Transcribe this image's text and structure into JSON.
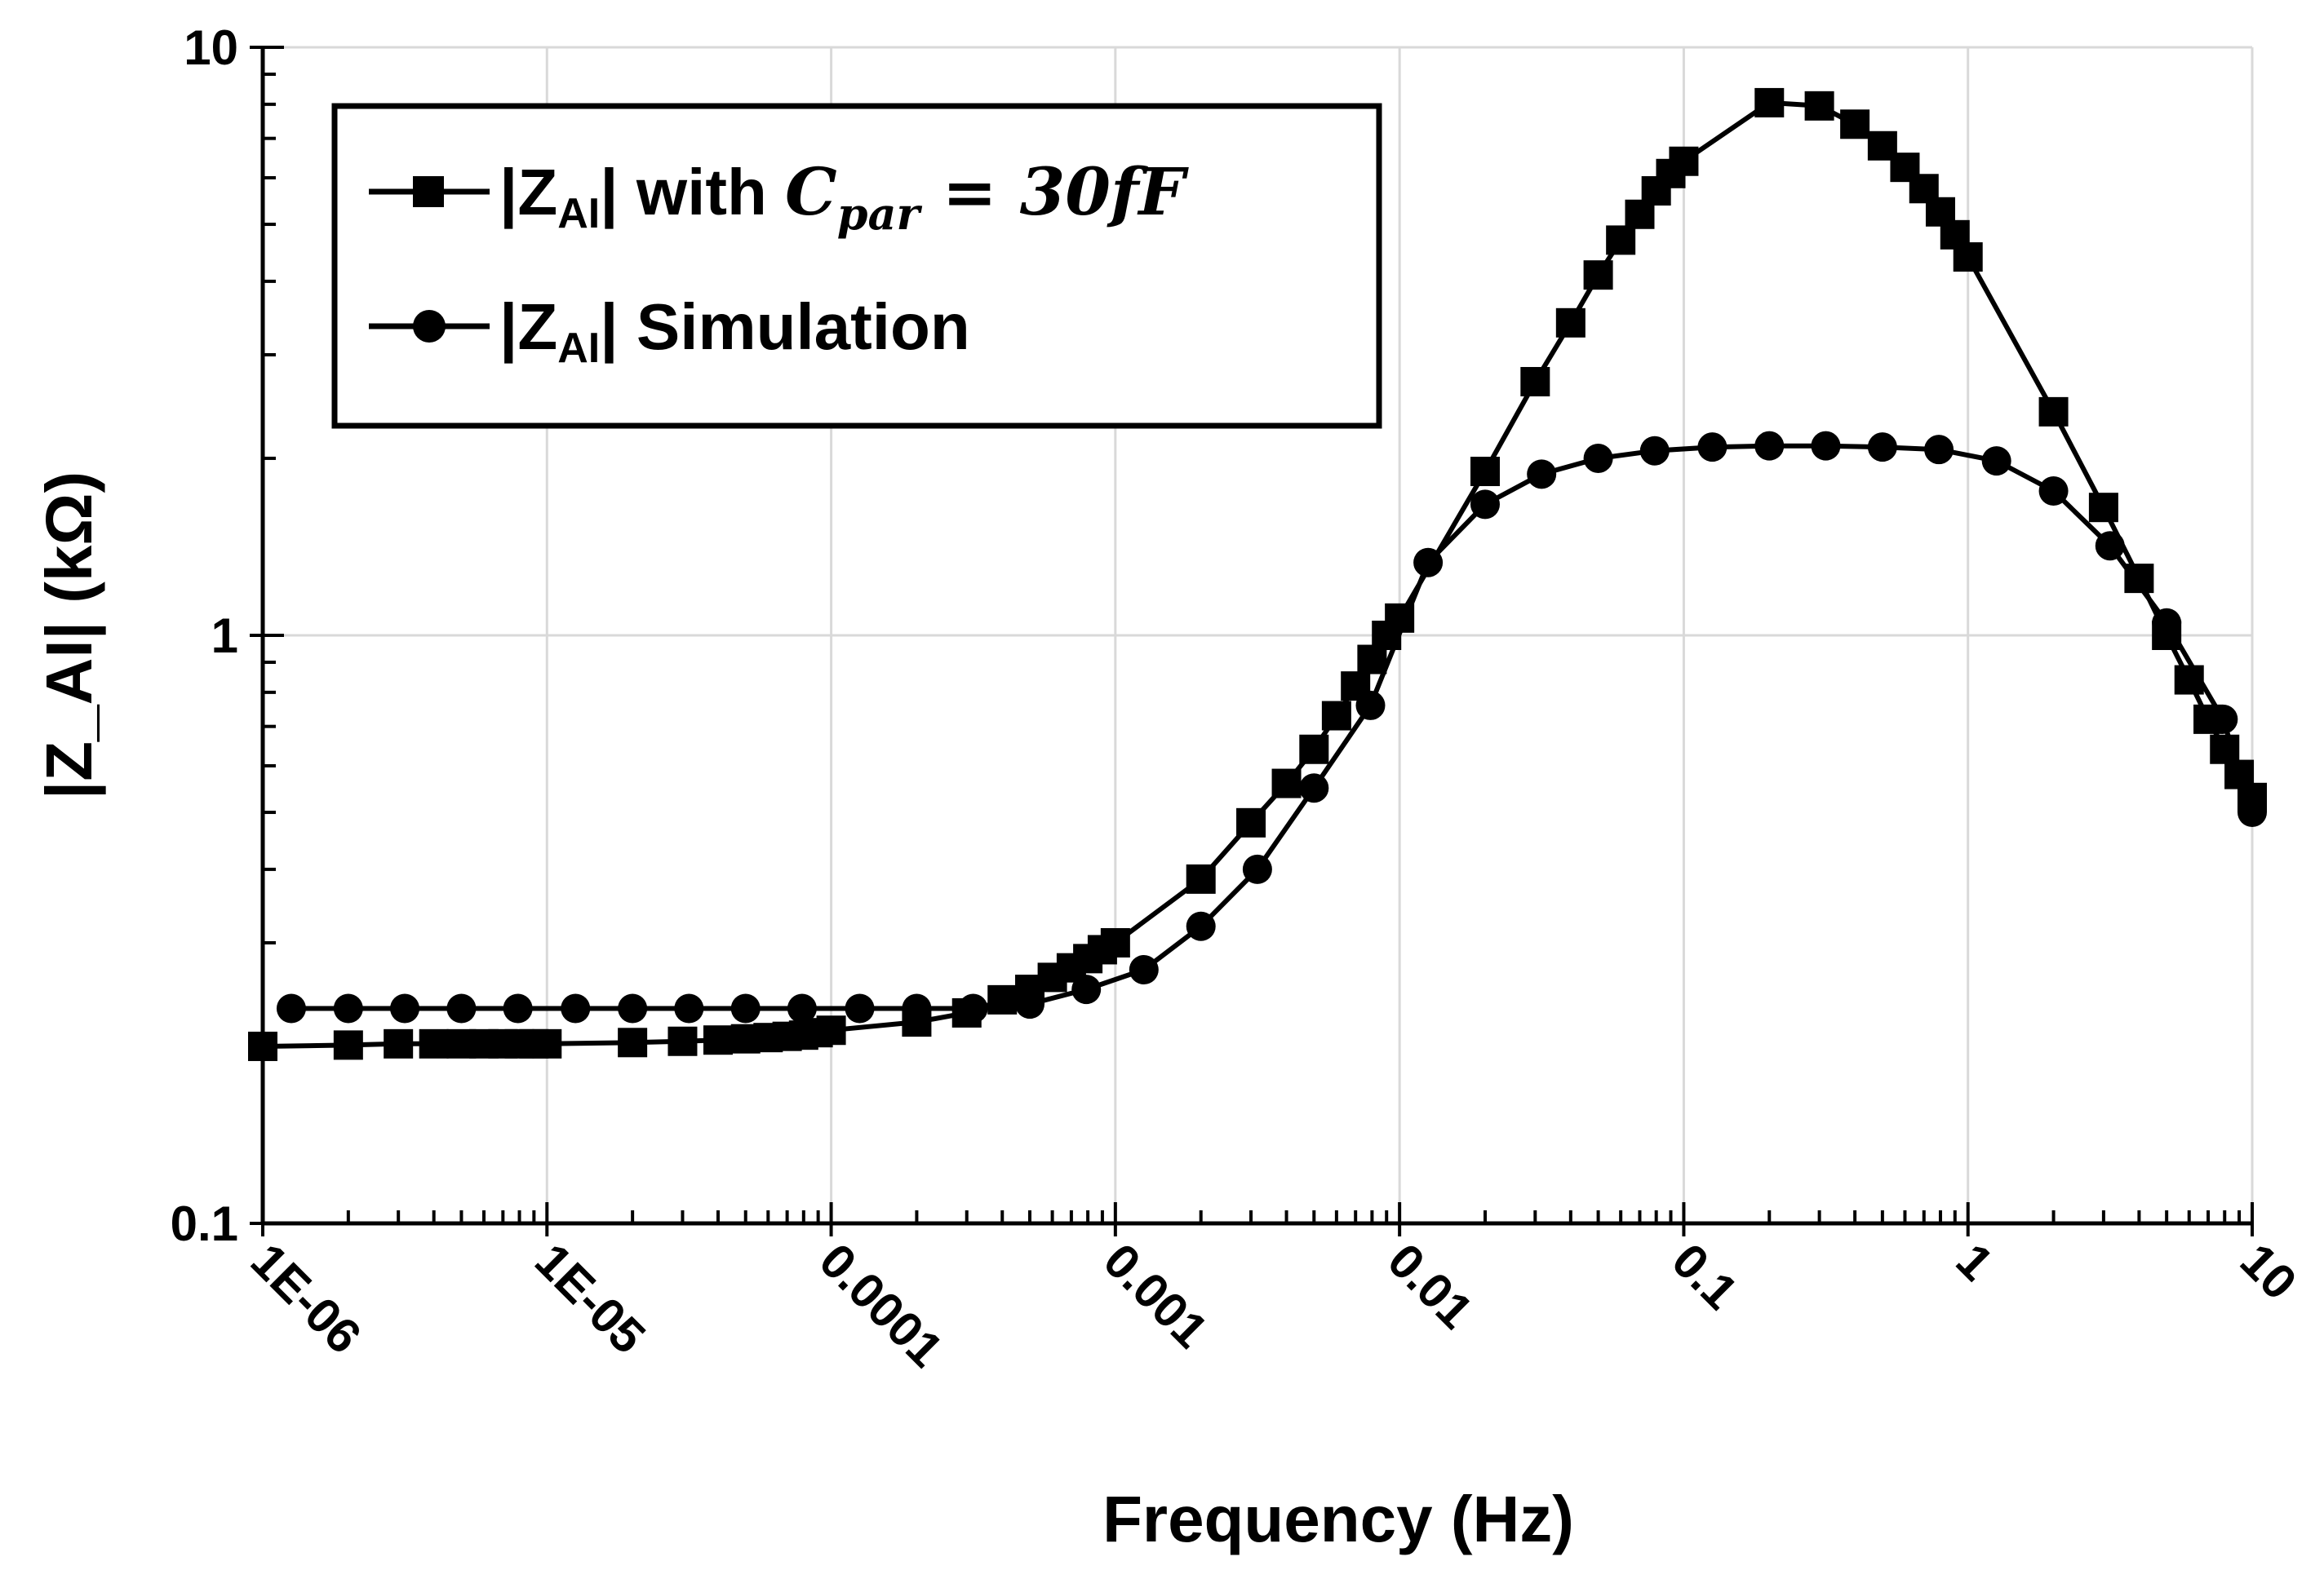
{
  "chart_data": {
    "type": "line",
    "title": "",
    "xlabel": "Frequency (Hz)",
    "ylabel": "|Z_AI| (kΩ)",
    "xscale": "log",
    "yscale": "log",
    "xlim": [
      1e-06,
      10
    ],
    "ylim": [
      0.1,
      10
    ],
    "x_tick_labels": [
      "1E-06",
      "1E-05",
      "0.0001",
      "0.001",
      "0.01",
      "0.1",
      "1",
      "10"
    ],
    "y_tick_labels": [
      "0.1",
      "1",
      "10"
    ],
    "grid": true,
    "legend_position": "top-left",
    "series": [
      {
        "name": "|Z_AI| with C_par = 30fF",
        "legend_prefix": "|Z",
        "legend_sub": "AI",
        "legend_suffix": "| with ",
        "legend_math": "C",
        "legend_math_sub": "par",
        "legend_math_rest": " = 30fF",
        "marker": "square",
        "color": "#000000",
        "points": [
          [
            1e-06,
            0.2
          ],
          [
            2e-06,
            0.201
          ],
          [
            3e-06,
            0.202
          ],
          [
            4e-06,
            0.202
          ],
          [
            5e-06,
            0.202
          ],
          [
            6e-06,
            0.202
          ],
          [
            7e-06,
            0.202
          ],
          [
            8e-06,
            0.202
          ],
          [
            9e-06,
            0.202
          ],
          [
            1e-05,
            0.202
          ],
          [
            2e-05,
            0.203
          ],
          [
            3e-05,
            0.204
          ],
          [
            4e-05,
            0.205
          ],
          [
            5e-05,
            0.206
          ],
          [
            6e-05,
            0.207
          ],
          [
            7e-05,
            0.208
          ],
          [
            8e-05,
            0.209
          ],
          [
            9e-05,
            0.211
          ],
          [
            0.0001,
            0.213
          ],
          [
            0.0002,
            0.22
          ],
          [
            0.0003,
            0.228
          ],
          [
            0.0004,
            0.24
          ],
          [
            0.0005,
            0.25
          ],
          [
            0.0006,
            0.262
          ],
          [
            0.0007,
            0.272
          ],
          [
            0.0008,
            0.282
          ],
          [
            0.0009,
            0.292
          ],
          [
            0.001,
            0.3
          ],
          [
            0.002,
            0.385
          ],
          [
            0.003,
            0.48
          ],
          [
            0.004,
            0.56
          ],
          [
            0.005,
            0.64
          ],
          [
            0.006,
            0.73
          ],
          [
            0.007,
            0.82
          ],
          [
            0.008,
            0.91
          ],
          [
            0.009,
            1.0
          ],
          [
            0.01,
            1.07
          ],
          [
            0.02,
            1.9
          ],
          [
            0.03,
            2.7
          ],
          [
            0.04,
            3.4
          ],
          [
            0.05,
            4.1
          ],
          [
            0.06,
            4.7
          ],
          [
            0.07,
            5.2
          ],
          [
            0.08,
            5.7
          ],
          [
            0.09,
            6.1
          ],
          [
            0.1,
            6.4
          ],
          [
            0.2,
            8.05
          ],
          [
            0.3,
            7.95
          ],
          [
            0.4,
            7.4
          ],
          [
            0.5,
            6.8
          ],
          [
            0.6,
            6.25
          ],
          [
            0.7,
            5.75
          ],
          [
            0.8,
            5.25
          ],
          [
            0.9,
            4.8
          ],
          [
            1.0,
            4.4
          ],
          [
            2.0,
            2.4
          ],
          [
            3.0,
            1.65
          ],
          [
            4.0,
            1.25
          ],
          [
            5.0,
            1.0
          ],
          [
            6.0,
            0.84
          ],
          [
            7.0,
            0.72
          ],
          [
            8.0,
            0.64
          ],
          [
            9.0,
            0.58
          ],
          [
            10.0,
            0.53
          ]
        ]
      },
      {
        "name": "|Z_AI| Simulation",
        "legend_prefix": "|Z",
        "legend_sub": "AI",
        "legend_suffix": "| Simulation",
        "legend_math": "",
        "legend_math_sub": "",
        "legend_math_rest": "",
        "marker": "circle",
        "color": "#000000",
        "points": [
          [
            1.26e-06,
            0.232
          ],
          [
            2e-06,
            0.232
          ],
          [
            3.16e-06,
            0.232
          ],
          [
            5e-06,
            0.232
          ],
          [
            7.9e-06,
            0.232
          ],
          [
            1.26e-05,
            0.232
          ],
          [
            2e-05,
            0.232
          ],
          [
            3.16e-05,
            0.232
          ],
          [
            5e-05,
            0.232
          ],
          [
            7.9e-05,
            0.232
          ],
          [
            0.000126,
            0.232
          ],
          [
            0.0002,
            0.232
          ],
          [
            0.000316,
            0.232
          ],
          [
            0.0005,
            0.236
          ],
          [
            0.00079,
            0.25
          ],
          [
            0.00126,
            0.27
          ],
          [
            0.002,
            0.32
          ],
          [
            0.00316,
            0.4
          ],
          [
            0.005,
            0.55
          ],
          [
            0.0079,
            0.76
          ],
          [
            0.0126,
            1.33
          ],
          [
            0.02,
            1.67
          ],
          [
            0.0316,
            1.88
          ],
          [
            0.05,
            2.0
          ],
          [
            0.079,
            2.06
          ],
          [
            0.126,
            2.09
          ],
          [
            0.2,
            2.1
          ],
          [
            0.316,
            2.1
          ],
          [
            0.5,
            2.09
          ],
          [
            0.79,
            2.07
          ],
          [
            1.26,
            1.98
          ],
          [
            2.0,
            1.76
          ],
          [
            3.16,
            1.42
          ],
          [
            5.0,
            1.05
          ],
          [
            7.9,
            0.72
          ],
          [
            10.0,
            0.5
          ]
        ]
      }
    ]
  }
}
